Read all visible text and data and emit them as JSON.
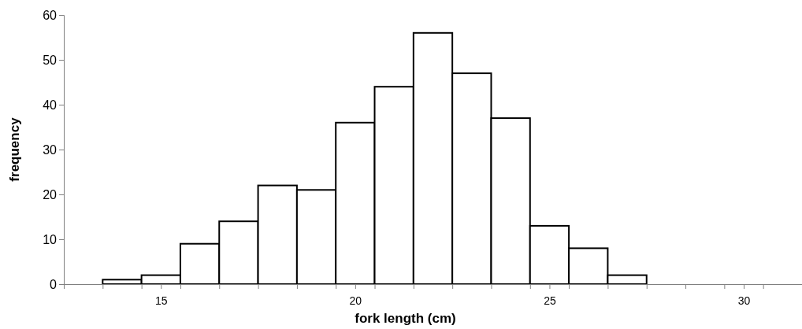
{
  "chart_data": {
    "type": "histogram",
    "xlabel": "fork length (cm)",
    "ylabel": "frequency",
    "bins": [
      13.5,
      14.5,
      15.5,
      16.5,
      17.5,
      18.5,
      19.5,
      20.5,
      21.5,
      22.5,
      23.5,
      24.5,
      25.5,
      26.5,
      27.5
    ],
    "values": [
      1,
      2,
      9,
      14,
      22,
      21,
      36,
      44,
      56,
      47,
      37,
      13,
      8,
      2
    ],
    "color": "#ffffff",
    "xlim": [
      12.5,
      31.5
    ],
    "xticks": [
      {
        "value": 12.5,
        "label": null
      },
      {
        "value": 13.5,
        "label": null
      },
      {
        "value": 14.5,
        "label": null
      },
      15,
      {
        "value": 15.5,
        "label": null
      },
      {
        "value": 16.5,
        "label": null
      },
      {
        "value": 17.5,
        "label": null
      },
      {
        "value": 18.5,
        "label": null
      },
      {
        "value": 19.5,
        "label": null
      },
      20,
      {
        "value": 20.5,
        "label": null
      },
      {
        "value": 21.5,
        "label": null
      },
      {
        "value": 22.5,
        "label": null
      },
      {
        "value": 23.5,
        "label": null
      },
      {
        "value": 24.5,
        "label": null
      },
      25,
      {
        "value": 25.5,
        "label": null
      },
      {
        "value": 26.5,
        "label": null
      },
      {
        "value": 27.5,
        "label": null
      },
      {
        "value": 28.5,
        "label": null
      },
      {
        "value": 29.5,
        "label": null
      },
      30,
      {
        "value": 30.5,
        "label": null
      },
      {
        "value": 31.5,
        "label": null
      }
    ],
    "ylim": [
      0,
      60
    ],
    "yticks": [
      0,
      10,
      20,
      30,
      40,
      50,
      60
    ],
    "grid": false
  }
}
